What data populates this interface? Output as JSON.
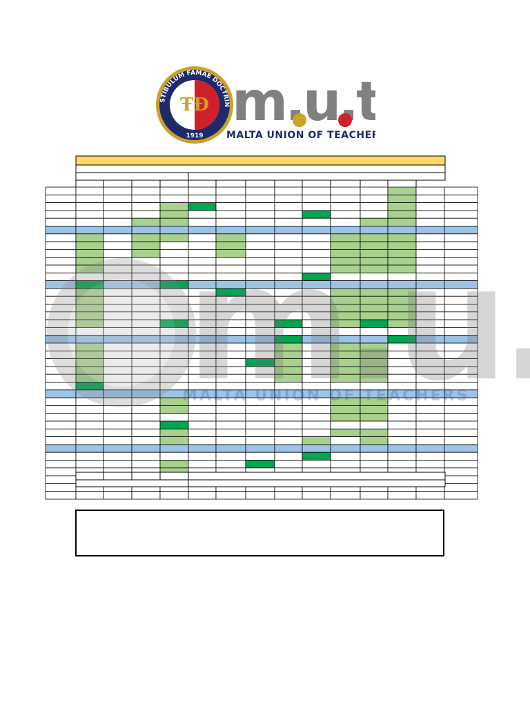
{
  "logo": {
    "seal_motto": "VESTIBULUM FAMAE DOCTRINA",
    "seal_year": "1919",
    "wordmark": "m.u.t",
    "org_name": "MALTA UNION OF TEACHERS"
  },
  "colors": {
    "header_band": "#FFD966",
    "week_band": "#9DC3E6",
    "light_green": "#A9D18E",
    "dark_green": "#00A650",
    "grid_line": "#000000",
    "wordmark_gray": "#808080",
    "dot_gold": "#C9A227",
    "dot_red": "#D0202A"
  },
  "calendar": {
    "header_title": "",
    "subheader": "",
    "total_rows": 40,
    "blue_rows": [
      5,
      12,
      19,
      26,
      33
    ],
    "light_green_cells": [
      [
        0,
        12
      ],
      [
        1,
        12
      ],
      [
        2,
        4
      ],
      [
        2,
        12
      ],
      [
        3,
        4
      ],
      [
        3,
        12
      ],
      [
        4,
        3
      ],
      [
        4,
        4
      ],
      [
        4,
        11
      ],
      [
        4,
        12
      ],
      [
        6,
        1
      ],
      [
        6,
        3
      ],
      [
        6,
        4
      ],
      [
        6,
        6
      ],
      [
        6,
        10
      ],
      [
        6,
        11
      ],
      [
        6,
        12
      ],
      [
        7,
        1
      ],
      [
        7,
        3
      ],
      [
        7,
        6
      ],
      [
        7,
        10
      ],
      [
        7,
        11
      ],
      [
        7,
        12
      ],
      [
        8,
        1
      ],
      [
        8,
        3
      ],
      [
        8,
        6
      ],
      [
        8,
        10
      ],
      [
        8,
        11
      ],
      [
        8,
        12
      ],
      [
        9,
        1
      ],
      [
        9,
        10
      ],
      [
        9,
        11
      ],
      [
        9,
        12
      ],
      [
        10,
        1
      ],
      [
        10,
        10
      ],
      [
        10,
        11
      ],
      [
        10,
        12
      ],
      [
        13,
        1
      ],
      [
        13,
        10
      ],
      [
        13,
        11
      ],
      [
        13,
        12
      ],
      [
        14,
        1
      ],
      [
        14,
        10
      ],
      [
        14,
        11
      ],
      [
        14,
        12
      ],
      [
        15,
        1
      ],
      [
        15,
        10
      ],
      [
        15,
        11
      ],
      [
        15,
        12
      ],
      [
        16,
        1
      ],
      [
        16,
        10
      ],
      [
        16,
        11
      ],
      [
        16,
        12
      ],
      [
        17,
        1
      ],
      [
        17,
        10
      ],
      [
        17,
        12
      ],
      [
        20,
        1
      ],
      [
        20,
        8
      ],
      [
        20,
        10
      ],
      [
        20,
        11
      ],
      [
        21,
        1
      ],
      [
        21,
        8
      ],
      [
        21,
        10
      ],
      [
        21,
        11
      ],
      [
        22,
        1
      ],
      [
        22,
        8
      ],
      [
        22,
        10
      ],
      [
        22,
        11
      ],
      [
        23,
        1
      ],
      [
        23,
        8
      ],
      [
        23,
        10
      ],
      [
        23,
        11
      ],
      [
        24,
        1
      ],
      [
        24,
        8
      ],
      [
        24,
        10
      ],
      [
        24,
        11
      ],
      [
        27,
        4
      ],
      [
        27,
        10
      ],
      [
        27,
        11
      ],
      [
        28,
        4
      ],
      [
        28,
        10
      ],
      [
        28,
        11
      ],
      [
        29,
        10
      ],
      [
        29,
        11
      ],
      [
        31,
        4
      ],
      [
        31,
        10
      ],
      [
        31,
        11
      ],
      [
        32,
        4
      ],
      [
        32,
        9
      ],
      [
        32,
        11
      ],
      [
        35,
        4
      ],
      [
        36,
        4
      ]
    ],
    "dark_green_cells": [
      [
        2,
        5
      ],
      [
        3,
        9
      ],
      [
        11,
        9
      ],
      [
        12,
        1
      ],
      [
        12,
        4
      ],
      [
        13,
        6
      ],
      [
        17,
        4
      ],
      [
        17,
        8
      ],
      [
        17,
        11
      ],
      [
        19,
        8
      ],
      [
        19,
        12
      ],
      [
        22,
        7
      ],
      [
        25,
        1
      ],
      [
        30,
        4
      ],
      [
        34,
        9
      ],
      [
        35,
        7
      ]
    ],
    "footer_note": ""
  },
  "watermark": {
    "wordmark": "m.u.t",
    "org_name": "MALTA UNION OF TEACHERS"
  }
}
